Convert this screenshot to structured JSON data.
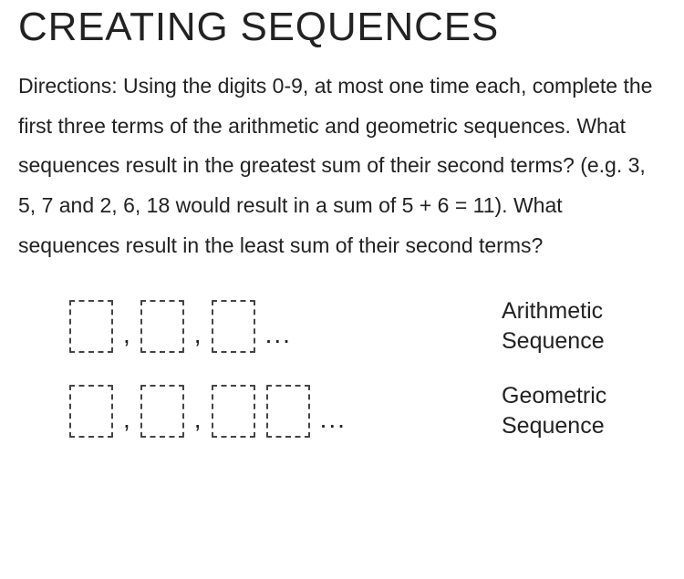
{
  "title": "CREATING SEQUENCES",
  "directions": "Directions: Using the digits 0-9, at most one time each, complete the first three terms of the arithmetic and geometric sequences. What sequences result in the greatest sum of their second terms? (e.g. 3, 5, 7 and 2, 6, 18 would result in a sum of 5 + 6 = 11). What sequences result in the least sum of their second terms?",
  "comma": ",",
  "ellipsis": "...",
  "labels": {
    "arithmetic": "Arithmetic Sequence",
    "geometric": "Geometric Sequence"
  },
  "colors": {
    "text": "#1c1c1c",
    "box_border": "#444444",
    "background": "#ffffff"
  },
  "fontsizes": {
    "title_pt": 44,
    "body_pt": 23,
    "label_pt": 25
  }
}
